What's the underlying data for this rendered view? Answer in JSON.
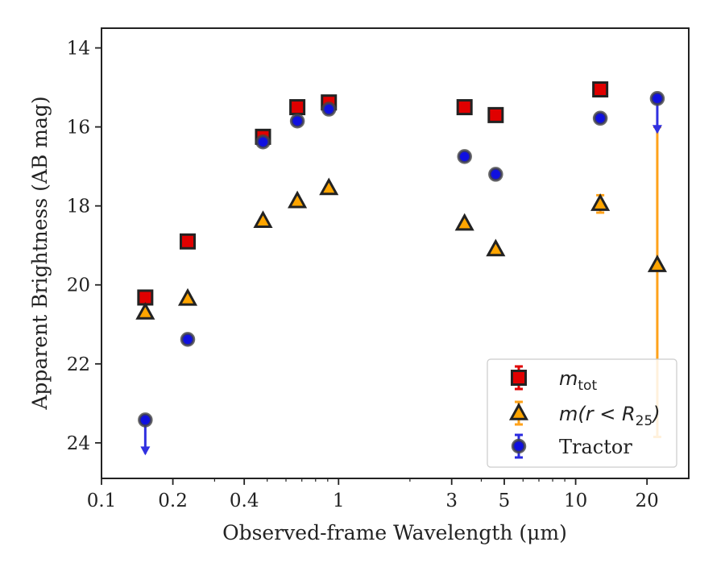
{
  "chart_data": {
    "type": "scatter",
    "xlabel": "Observed-frame Wavelength (μm)",
    "ylabel": "Apparent Brightness (AB mag)",
    "xscale": "log",
    "xlim": [
      0.1,
      30
    ],
    "ylim": [
      24.9,
      13.5
    ],
    "y_inverted": true,
    "x_ticks": [
      {
        "value": 0.1,
        "label": "0.1"
      },
      {
        "value": 0.2,
        "label": "0.2"
      },
      {
        "value": 0.4,
        "label": "0.4"
      },
      {
        "value": 1,
        "label": "1"
      },
      {
        "value": 3,
        "label": "3"
      },
      {
        "value": 5,
        "label": "5"
      },
      {
        "value": 10,
        "label": "10"
      },
      {
        "value": 20,
        "label": "20"
      }
    ],
    "y_ticks": [
      {
        "value": 14,
        "label": "14"
      },
      {
        "value": 16,
        "label": "16"
      },
      {
        "value": 18,
        "label": "18"
      },
      {
        "value": 20,
        "label": "20"
      },
      {
        "value": 22,
        "label": "22"
      },
      {
        "value": 24,
        "label": "24"
      }
    ],
    "grid": false,
    "legend": "lower-right",
    "series": [
      {
        "name": "m_tot",
        "label_main": "m",
        "label_sub": "tot",
        "marker": "square",
        "color": "#e00000",
        "points": [
          {
            "x": 0.153,
            "y": 20.32
          },
          {
            "x": 0.231,
            "y": 18.9
          },
          {
            "x": 0.48,
            "y": 16.25
          },
          {
            "x": 0.67,
            "y": 15.5
          },
          {
            "x": 0.91,
            "y": 15.38
          },
          {
            "x": 3.4,
            "y": 15.5
          },
          {
            "x": 4.6,
            "y": 15.7
          },
          {
            "x": 12.7,
            "y": 15.05
          }
        ]
      },
      {
        "name": "m(r < R_25)",
        "label_main": "m(r < R",
        "label_sub": "25",
        "label_tail": ")",
        "marker": "triangle",
        "color": "#ffa500",
        "points": [
          {
            "x": 0.153,
            "y": 20.7
          },
          {
            "x": 0.231,
            "y": 20.35
          },
          {
            "x": 0.48,
            "y": 18.38
          },
          {
            "x": 0.67,
            "y": 17.88
          },
          {
            "x": 0.91,
            "y": 17.55
          },
          {
            "x": 3.4,
            "y": 18.45
          },
          {
            "x": 4.6,
            "y": 19.1
          },
          {
            "x": 12.7,
            "y": 17.95,
            "err": 0.22
          },
          {
            "x": 22.1,
            "y": 19.5,
            "err_low": 16.0,
            "err_high": 23.85
          }
        ]
      },
      {
        "name": "Tractor",
        "label_main": "Tractor",
        "marker": "circle",
        "color": "#1010e0",
        "points": [
          {
            "x": 0.153,
            "y": 23.42,
            "upper_limit": true
          },
          {
            "x": 0.231,
            "y": 21.38
          },
          {
            "x": 0.48,
            "y": 16.38
          },
          {
            "x": 0.67,
            "y": 15.85
          },
          {
            "x": 0.91,
            "y": 15.55
          },
          {
            "x": 3.4,
            "y": 16.75
          },
          {
            "x": 4.6,
            "y": 17.2
          },
          {
            "x": 12.7,
            "y": 15.78
          },
          {
            "x": 22.1,
            "y": 15.28,
            "upper_limit": true
          }
        ]
      }
    ]
  }
}
